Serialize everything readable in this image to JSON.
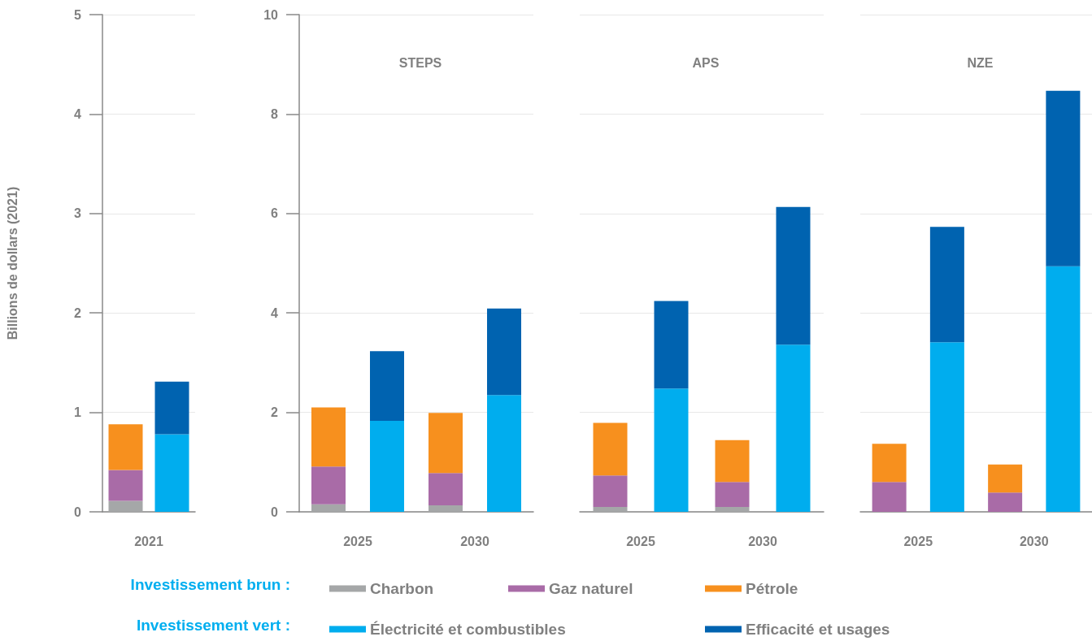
{
  "chart_data": [
    {
      "type": "bar",
      "stacked": true,
      "ylabel": "Billions de dollars (2021)",
      "categories": [
        "2021",
        null
      ],
      "ylim": [
        0,
        5
      ],
      "yticks": [
        0,
        1,
        2,
        3,
        4,
        5
      ],
      "grid": "y",
      "legend": "bottom",
      "annotations": [
        "Investissement brun :",
        "Investissement vert :"
      ],
      "series": [
        {
          "name": "Charbon",
          "color": "#a5a7a8",
          "values": [
            0.11,
            null
          ]
        },
        {
          "name": "Gaz naturel",
          "color": "#a96ba7",
          "values": [
            0.31,
            null
          ]
        },
        {
          "name": "Pétrole",
          "color": "#f7901e",
          "values": [
            0.46,
            null
          ]
        },
        {
          "name": "Électricité et combustibles",
          "color": "#00adee",
          "values": [
            null,
            0.78
          ]
        },
        {
          "name": "Efficacité et usages",
          "color": "#0063b0",
          "values": [
            null,
            0.53
          ]
        }
      ]
    },
    {
      "type": "bar",
      "stacked": true,
      "title": "STEPS",
      "categories": [
        "2025",
        null,
        "2030",
        null
      ],
      "ylim": [
        0,
        10
      ],
      "yticks": [
        0,
        2,
        4,
        6,
        8,
        10
      ],
      "grid": "y",
      "series": [
        {
          "color": "#a5a7a8",
          "values": [
            0.15,
            null,
            0.13,
            null
          ]
        },
        {
          "color": "#a96ba7",
          "values": [
            0.76,
            null,
            0.65,
            null
          ]
        },
        {
          "color": "#f7901e",
          "values": [
            1.19,
            null,
            1.21,
            null
          ]
        },
        {
          "color": "#00adee",
          "values": [
            null,
            1.83,
            null,
            2.35
          ]
        },
        {
          "color": "#0063b0",
          "values": [
            null,
            1.4,
            null,
            1.74
          ]
        }
      ]
    },
    {
      "type": "bar",
      "stacked": true,
      "title": "APS",
      "categories": [
        "2025",
        null,
        "2030",
        null
      ],
      "ylim": [
        0,
        10
      ],
      "yticks": [
        0,
        2,
        4,
        6,
        8,
        10
      ],
      "grid": "y",
      "tick_labels": "x",
      "series": [
        {
          "color": "#a5a7a8",
          "values": [
            0.1,
            null,
            0.1,
            null
          ]
        },
        {
          "color": "#a96ba7",
          "values": [
            0.63,
            null,
            0.5,
            null
          ]
        },
        {
          "color": "#f7901e",
          "values": [
            1.06,
            null,
            0.84,
            null
          ]
        },
        {
          "color": "#00adee",
          "values": [
            null,
            2.48,
            null,
            3.36
          ]
        },
        {
          "color": "#0063b0",
          "values": [
            null,
            1.76,
            null,
            2.77
          ]
        }
      ]
    },
    {
      "type": "bar",
      "stacked": true,
      "title": "NZE",
      "categories": [
        "2025",
        null,
        "2030",
        null
      ],
      "ylim": [
        0,
        10
      ],
      "yticks": [
        0,
        2,
        4,
        6,
        8,
        10
      ],
      "grid": "y",
      "tick_labels": "x",
      "series": [
        {
          "color": "#a5a7a8",
          "values": [
            0,
            null,
            0,
            null
          ]
        },
        {
          "color": "#a96ba7",
          "values": [
            0.6,
            null,
            0.39,
            null
          ]
        },
        {
          "color": "#f7901e",
          "values": [
            0.77,
            null,
            0.56,
            null
          ]
        },
        {
          "color": "#00adee",
          "values": [
            null,
            3.41,
            null,
            4.94
          ]
        },
        {
          "color": "#0063b0",
          "values": [
            null,
            2.32,
            null,
            3.53
          ]
        }
      ]
    }
  ]
}
